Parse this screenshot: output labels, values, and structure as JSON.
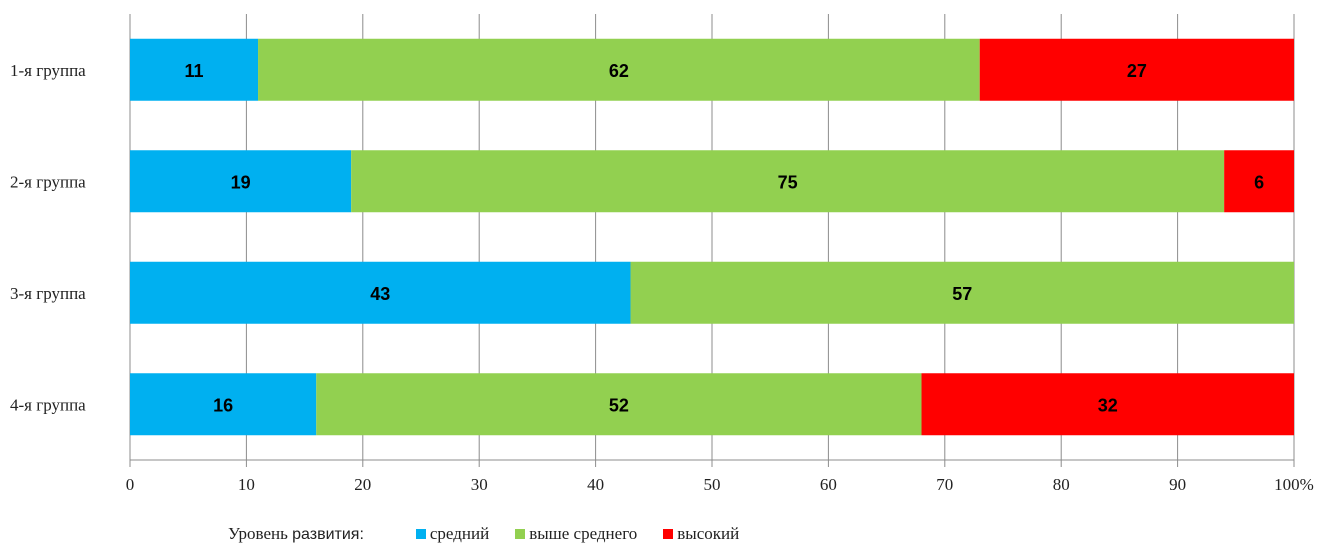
{
  "chart_data": {
    "type": "bar",
    "orientation": "horizontal",
    "stacked": true,
    "categories": [
      "1-я группа",
      "2-я группа",
      "3-я группа",
      "4-я группа"
    ],
    "series": [
      {
        "name": "средний",
        "color": "#00b0f0",
        "values": [
          11,
          19,
          43,
          16
        ]
      },
      {
        "name": "выше среднего",
        "color": "#92d050",
        "values": [
          62,
          75,
          57,
          52
        ]
      },
      {
        "name": "высокий",
        "color": "#ff0000",
        "values": [
          27,
          6,
          0,
          32
        ]
      }
    ],
    "xlim": [
      0,
      100
    ],
    "xticks": [
      "0",
      "10",
      "20",
      "30",
      "40",
      "50",
      "60",
      "70",
      "80",
      "90",
      "100%"
    ],
    "grid": "vertical",
    "legend_position": "bottom"
  },
  "legend": {
    "title_part1": "Уровень ",
    "title_part2": "развития:"
  }
}
